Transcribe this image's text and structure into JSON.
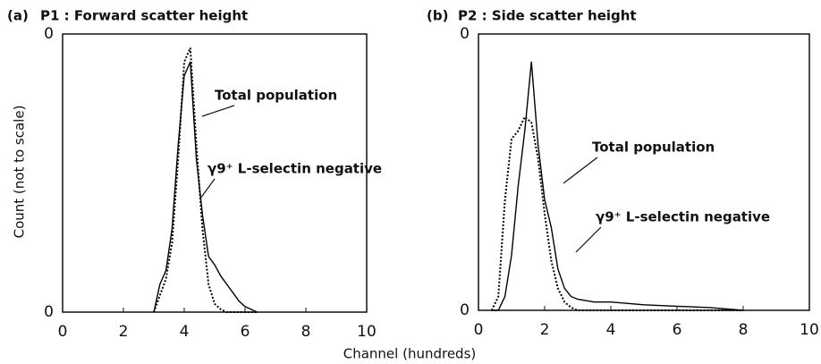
{
  "xlabel": "Channel (hundreds)",
  "ylabel": "Count (not to scale)",
  "chart_data": [
    {
      "type": "line",
      "panel": "(a)",
      "title": "P1 : Forward scatter height",
      "xlim": [
        0,
        10
      ],
      "xticks": [
        0,
        2,
        4,
        6,
        8,
        10
      ],
      "ylim": [
        0,
        1
      ],
      "yticks": [
        0,
        {
          "value": 1,
          "label": "0"
        }
      ],
      "x": [
        3.0,
        3.2,
        3.4,
        3.6,
        3.8,
        4.0,
        4.2,
        4.4,
        4.6,
        4.8,
        5.0,
        5.2,
        5.4,
        5.6,
        5.8,
        6.0,
        6.2,
        6.4
      ],
      "series": [
        {
          "name": "Total population",
          "color": "#000000",
          "dash": "dotted",
          "values": [
            0,
            0.06,
            0.12,
            0.25,
            0.55,
            0.9,
            0.95,
            0.6,
            0.3,
            0.1,
            0.03,
            0.01,
            0,
            0,
            0,
            0,
            0,
            0
          ]
        },
        {
          "name": "γ9⁺ L-selectin negative",
          "color": "#000000",
          "dash": "solid",
          "values": [
            0,
            0.1,
            0.15,
            0.3,
            0.6,
            0.85,
            0.9,
            0.55,
            0.35,
            0.2,
            0.17,
            0.13,
            0.1,
            0.07,
            0.04,
            0.02,
            0.01,
            0
          ]
        }
      ]
    },
    {
      "type": "line",
      "panel": "(b)",
      "title": "P2 : Side scatter height",
      "xlim": [
        0,
        10
      ],
      "xticks": [
        0,
        2,
        4,
        6,
        8,
        10
      ],
      "ylim": [
        0,
        1
      ],
      "yticks": [
        0,
        {
          "value": 1,
          "label": "0"
        }
      ],
      "x": [
        0.4,
        0.6,
        0.8,
        1.0,
        1.2,
        1.4,
        1.6,
        1.8,
        2.0,
        2.2,
        2.4,
        2.6,
        2.8,
        3.0,
        3.5,
        4.0,
        5.0,
        6.0,
        7.0,
        8.0
      ],
      "series": [
        {
          "name": "Total population",
          "color": "#000000",
          "dash": "dotted",
          "values": [
            0,
            0.05,
            0.4,
            0.62,
            0.65,
            0.7,
            0.68,
            0.55,
            0.35,
            0.18,
            0.08,
            0.03,
            0.01,
            0,
            0,
            0,
            0,
            0,
            0,
            0
          ]
        },
        {
          "name": "γ9⁺ L-selectin negative",
          "color": "#000000",
          "dash": "solid",
          "values": [
            0,
            0,
            0.05,
            0.2,
            0.45,
            0.65,
            0.9,
            0.6,
            0.4,
            0.3,
            0.15,
            0.08,
            0.05,
            0.04,
            0.03,
            0.03,
            0.02,
            0.015,
            0.01,
            0
          ]
        }
      ]
    }
  ]
}
